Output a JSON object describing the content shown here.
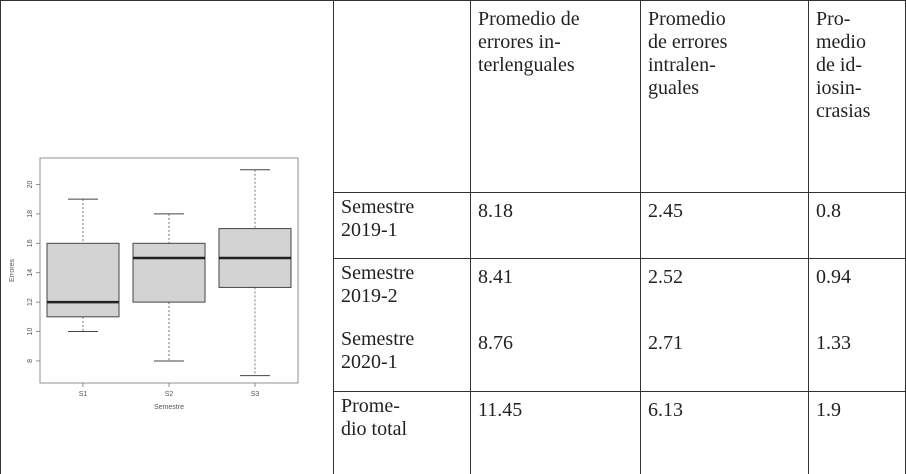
{
  "table": {
    "columns": [
      {
        "lines": [
          "Promedio de",
          "errores in-",
          "terlenguales"
        ]
      },
      {
        "lines": [
          "Promedio",
          "de errores",
          "intralen-",
          "guales"
        ]
      },
      {
        "lines": [
          "Pro-",
          "medio",
          "de id-",
          "iosin-",
          "crasias"
        ]
      }
    ],
    "rows": [
      {
        "label": [
          "Semestre",
          "2019-1"
        ],
        "values": [
          8.18,
          2.45,
          0.8
        ]
      },
      {
        "label": [
          "Semestre",
          "2019-2"
        ],
        "values": [
          8.41,
          2.52,
          0.94
        ]
      },
      {
        "label": [
          "Semestre",
          "2020-1"
        ],
        "values": [
          8.76,
          2.71,
          1.33
        ]
      },
      {
        "label": [
          "Prome-",
          "dio total"
        ],
        "values": [
          11.45,
          6.13,
          1.9
        ]
      }
    ]
  },
  "figure": {
    "type": "boxplot",
    "x_label": "Semestre",
    "y_label": "Errores",
    "categories": [
      "S1",
      "S2",
      "S3"
    ],
    "boxes": [
      {
        "min": 10,
        "q1": 11,
        "median": 12,
        "q3": 16,
        "max": 19
      },
      {
        "min": 8,
        "q1": 12,
        "median": 15,
        "q3": 16,
        "max": 18
      },
      {
        "min": 7,
        "q1": 13,
        "median": 15,
        "q3": 17,
        "max": 21
      }
    ],
    "ylim": [
      6.5,
      21.8
    ],
    "yticks": [
      8,
      10,
      12,
      14,
      16,
      18,
      20
    ]
  }
}
